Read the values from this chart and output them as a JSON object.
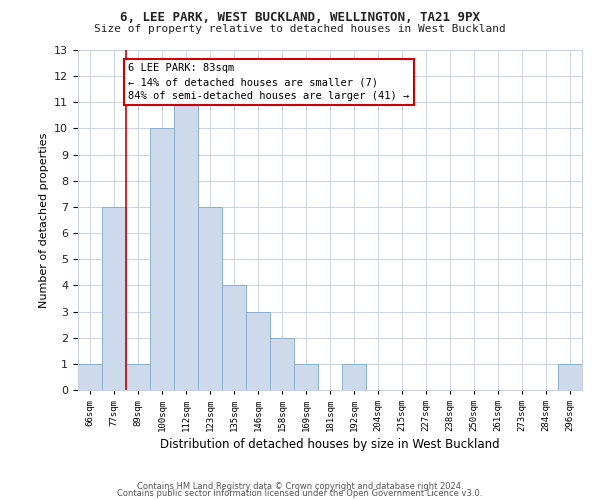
{
  "title1": "6, LEE PARK, WEST BUCKLAND, WELLINGTON, TA21 9PX",
  "title2": "Size of property relative to detached houses in West Buckland",
  "xlabel": "Distribution of detached houses by size in West Buckland",
  "ylabel": "Number of detached properties",
  "categories": [
    "66sqm",
    "77sqm",
    "89sqm",
    "100sqm",
    "112sqm",
    "123sqm",
    "135sqm",
    "146sqm",
    "158sqm",
    "169sqm",
    "181sqm",
    "192sqm",
    "204sqm",
    "215sqm",
    "227sqm",
    "238sqm",
    "250sqm",
    "261sqm",
    "273sqm",
    "284sqm",
    "296sqm"
  ],
  "values": [
    1,
    7,
    1,
    10,
    11,
    7,
    4,
    3,
    2,
    1,
    0,
    1,
    0,
    0,
    0,
    0,
    0,
    0,
    0,
    0,
    1
  ],
  "bar_color": "#ccdaeb",
  "bar_edge_color": "#7fa8c8",
  "grid_color": "#c8d4e4",
  "annotation_line1": "6 LEE PARK: 83sqm",
  "annotation_line2": "← 14% of detached houses are smaller (7)",
  "annotation_line3": "84% of semi-detached houses are larger (41) →",
  "vline_x": 1.5,
  "vline_color": "#cc0000",
  "annotation_box_color": "#ffffff",
  "annotation_box_edge_color": "#cc0000",
  "footer1": "Contains HM Land Registry data © Crown copyright and database right 2024.",
  "footer2": "Contains public sector information licensed under the Open Government Licence v3.0.",
  "ylim": [
    0,
    13
  ],
  "yticks": [
    0,
    1,
    2,
    3,
    4,
    5,
    6,
    7,
    8,
    9,
    10,
    11,
    12,
    13
  ]
}
